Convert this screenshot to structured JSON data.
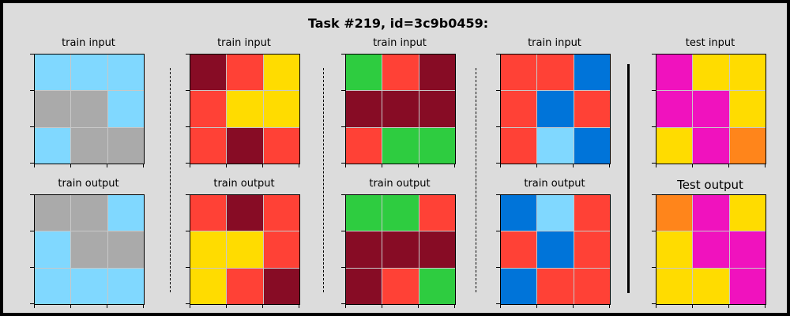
{
  "title": "Task #219, id=3c9b0459:",
  "colors": {
    "b": "#80d8ff",
    "g": "#aaaaaa",
    "m": "#870c25",
    "r": "#ff4136",
    "y": "#ffdc00",
    "G": "#2ecc40",
    "B": "#0074d9",
    "p": "#f012be",
    "o": "#ff851b"
  },
  "panels": [
    {
      "input_label": "train input",
      "output_label": "train output",
      "input": [
        [
          "b",
          "b",
          "b"
        ],
        [
          "g",
          "g",
          "b"
        ],
        [
          "b",
          "g",
          "g"
        ]
      ],
      "output": [
        [
          "g",
          "g",
          "b"
        ],
        [
          "b",
          "g",
          "g"
        ],
        [
          "b",
          "b",
          "b"
        ]
      ]
    },
    {
      "input_label": "train input",
      "output_label": "train output",
      "input": [
        [
          "m",
          "r",
          "y"
        ],
        [
          "r",
          "y",
          "y"
        ],
        [
          "r",
          "m",
          "r"
        ]
      ],
      "output": [
        [
          "r",
          "m",
          "r"
        ],
        [
          "y",
          "y",
          "r"
        ],
        [
          "y",
          "r",
          "m"
        ]
      ]
    },
    {
      "input_label": "train input",
      "output_label": "train output",
      "input": [
        [
          "G",
          "r",
          "m"
        ],
        [
          "m",
          "m",
          "m"
        ],
        [
          "r",
          "G",
          "G"
        ]
      ],
      "output": [
        [
          "G",
          "G",
          "r"
        ],
        [
          "m",
          "m",
          "m"
        ],
        [
          "m",
          "r",
          "G"
        ]
      ]
    },
    {
      "input_label": "train input",
      "output_label": "train output",
      "input": [
        [
          "r",
          "r",
          "B"
        ],
        [
          "r",
          "B",
          "r"
        ],
        [
          "r",
          "b",
          "B"
        ]
      ],
      "output": [
        [
          "B",
          "b",
          "r"
        ],
        [
          "r",
          "B",
          "r"
        ],
        [
          "B",
          "r",
          "r"
        ]
      ]
    },
    {
      "input_label": "test input",
      "output_label": "Test output",
      "input": [
        [
          "p",
          "y",
          "y"
        ],
        [
          "p",
          "p",
          "y"
        ],
        [
          "y",
          "p",
          "o"
        ]
      ],
      "output": [
        [
          "o",
          "p",
          "y"
        ],
        [
          "y",
          "p",
          "p"
        ],
        [
          "y",
          "y",
          "p"
        ]
      ]
    }
  ]
}
